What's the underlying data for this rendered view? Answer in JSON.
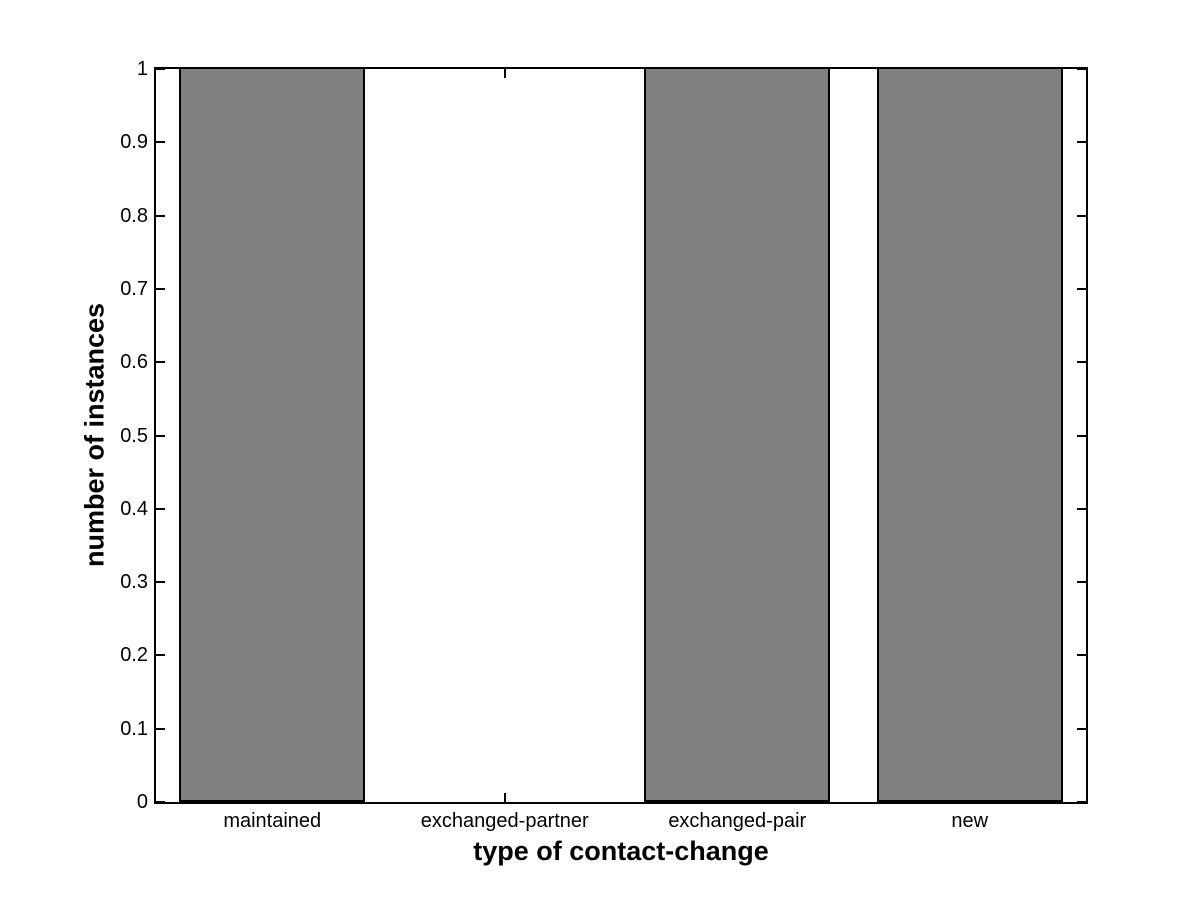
{
  "figure": {
    "background": "#ffffff"
  },
  "chart_data": {
    "type": "bar",
    "title": "",
    "xlabel": "type of contact-change",
    "ylabel": "number of instances",
    "categories": [
      "maintained",
      "exchanged-partner",
      "exchanged-pair",
      "new"
    ],
    "values": [
      1,
      0,
      1,
      1
    ],
    "x_positions": [
      1,
      2,
      3,
      4
    ],
    "xlim": [
      0.5,
      4.5
    ],
    "ylim": [
      0,
      1
    ],
    "yticks": [
      0,
      0.1,
      0.2,
      0.3,
      0.4,
      0.5,
      0.6,
      0.7,
      0.8,
      0.9,
      1
    ],
    "ytick_labels": [
      "0",
      "0.1",
      "0.2",
      "0.3",
      "0.4",
      "0.5",
      "0.6",
      "0.7",
      "0.8",
      "0.9",
      "1"
    ],
    "bar_width": 0.8,
    "bar_fill": "#808080",
    "bar_edge": "#000000",
    "axis_color": "#000000",
    "background": "#ffffff",
    "grid": false,
    "box": true,
    "tick_direction": "in",
    "legend": "none"
  }
}
